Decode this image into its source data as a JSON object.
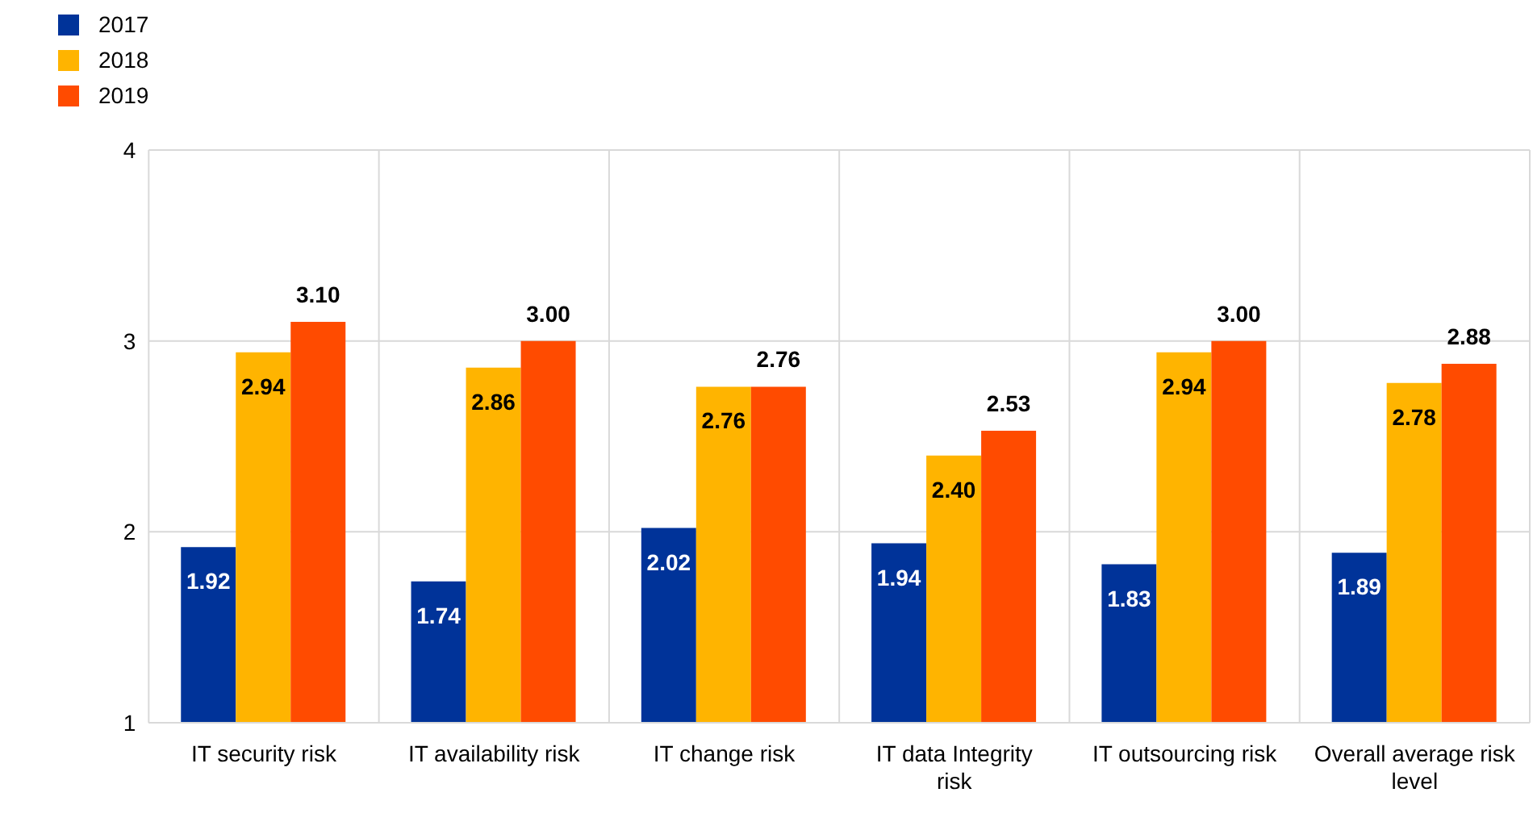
{
  "chart_data": {
    "type": "bar",
    "categories": [
      "IT security risk",
      "IT availability risk",
      "IT change risk",
      "IT data Integrity risk",
      "IT outsourcing risk",
      "Overall average risk level"
    ],
    "series": [
      {
        "name": "2017",
        "color": "#003399",
        "values": [
          1.92,
          1.74,
          2.02,
          1.94,
          1.83,
          1.89
        ],
        "value_labels": [
          "1.92",
          "1.74",
          "2.02",
          "1.94",
          "1.83",
          "1.89"
        ]
      },
      {
        "name": "2018",
        "color": "#ffb400",
        "values": [
          2.94,
          2.86,
          2.76,
          2.4,
          2.94,
          2.78
        ],
        "value_labels": [
          "2.94",
          "2.86",
          "2.76",
          "2.40",
          "2.94",
          "2.78"
        ]
      },
      {
        "name": "2019",
        "color": "#ff4b00",
        "values": [
          3.1,
          3.0,
          2.76,
          2.53,
          3.0,
          2.88
        ],
        "value_labels": [
          "3.10",
          "3.00",
          "2.76",
          "2.53",
          "3.00",
          "2.88"
        ]
      }
    ],
    "ylim": [
      1,
      4
    ],
    "yticks": [
      1,
      2,
      3,
      4
    ],
    "grid": true,
    "legend": "top left"
  }
}
